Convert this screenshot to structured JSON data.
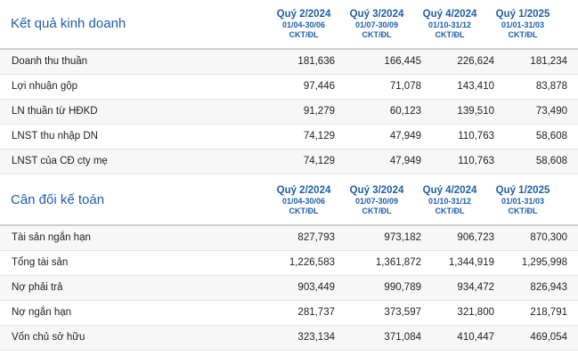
{
  "income": {
    "title": "Kết quả kinh doanh",
    "columns": [
      {
        "quarter": "Quý 2/2024",
        "range": "01/04-30/06",
        "unit": "CKT/ĐL"
      },
      {
        "quarter": "Quý 3/2024",
        "range": "01/07-30/09",
        "unit": "CKT/ĐL"
      },
      {
        "quarter": "Quý 4/2024",
        "range": "01/10-31/12",
        "unit": "CKT/ĐL"
      },
      {
        "quarter": "Quý 1/2025",
        "range": "01/01-31/03",
        "unit": "CKT/ĐL"
      }
    ],
    "rows": [
      {
        "label": "Doanh thu thuần",
        "values": [
          "181,636",
          "166,445",
          "226,624",
          "181,234"
        ]
      },
      {
        "label": "Lợi nhuận gộp",
        "values": [
          "97,446",
          "71,078",
          "143,410",
          "83,878"
        ]
      },
      {
        "label": "LN thuần từ HĐKD",
        "values": [
          "91,279",
          "60,123",
          "139,510",
          "73,490"
        ]
      },
      {
        "label": "LNST thu nhập DN",
        "values": [
          "74,129",
          "47,949",
          "110,763",
          "58,608"
        ]
      },
      {
        "label": "LNST của CĐ cty mẹ",
        "values": [
          "74,129",
          "47,949",
          "110,763",
          "58,608"
        ]
      }
    ]
  },
  "balance": {
    "title": "Cân đối kế toán",
    "columns": [
      {
        "quarter": "Quý 2/2024",
        "range": "01/04-30/06",
        "unit": "CKT/ĐL"
      },
      {
        "quarter": "Quý 3/2024",
        "range": "01/07-30/09",
        "unit": "CKT/ĐL"
      },
      {
        "quarter": "Quý 4/2024",
        "range": "01/10-31/12",
        "unit": "CKT/ĐL"
      },
      {
        "quarter": "Quý 1/2025",
        "range": "01/01-31/03",
        "unit": "CKT/ĐL"
      }
    ],
    "rows": [
      {
        "label": "Tài sản ngắn hạn",
        "values": [
          "827,793",
          "973,182",
          "906,723",
          "870,300"
        ]
      },
      {
        "label": "Tổng tài sản",
        "values": [
          "1,226,583",
          "1,361,872",
          "1,344,919",
          "1,295,998"
        ]
      },
      {
        "label": "Nợ phải trả",
        "values": [
          "903,449",
          "990,789",
          "934,472",
          "826,943"
        ]
      },
      {
        "label": "Nợ ngắn hạn",
        "values": [
          "281,737",
          "373,597",
          "321,800",
          "218,791"
        ]
      },
      {
        "label": "Vốn chủ sở hữu",
        "values": [
          "323,134",
          "371,084",
          "410,447",
          "469,054"
        ]
      }
    ]
  }
}
